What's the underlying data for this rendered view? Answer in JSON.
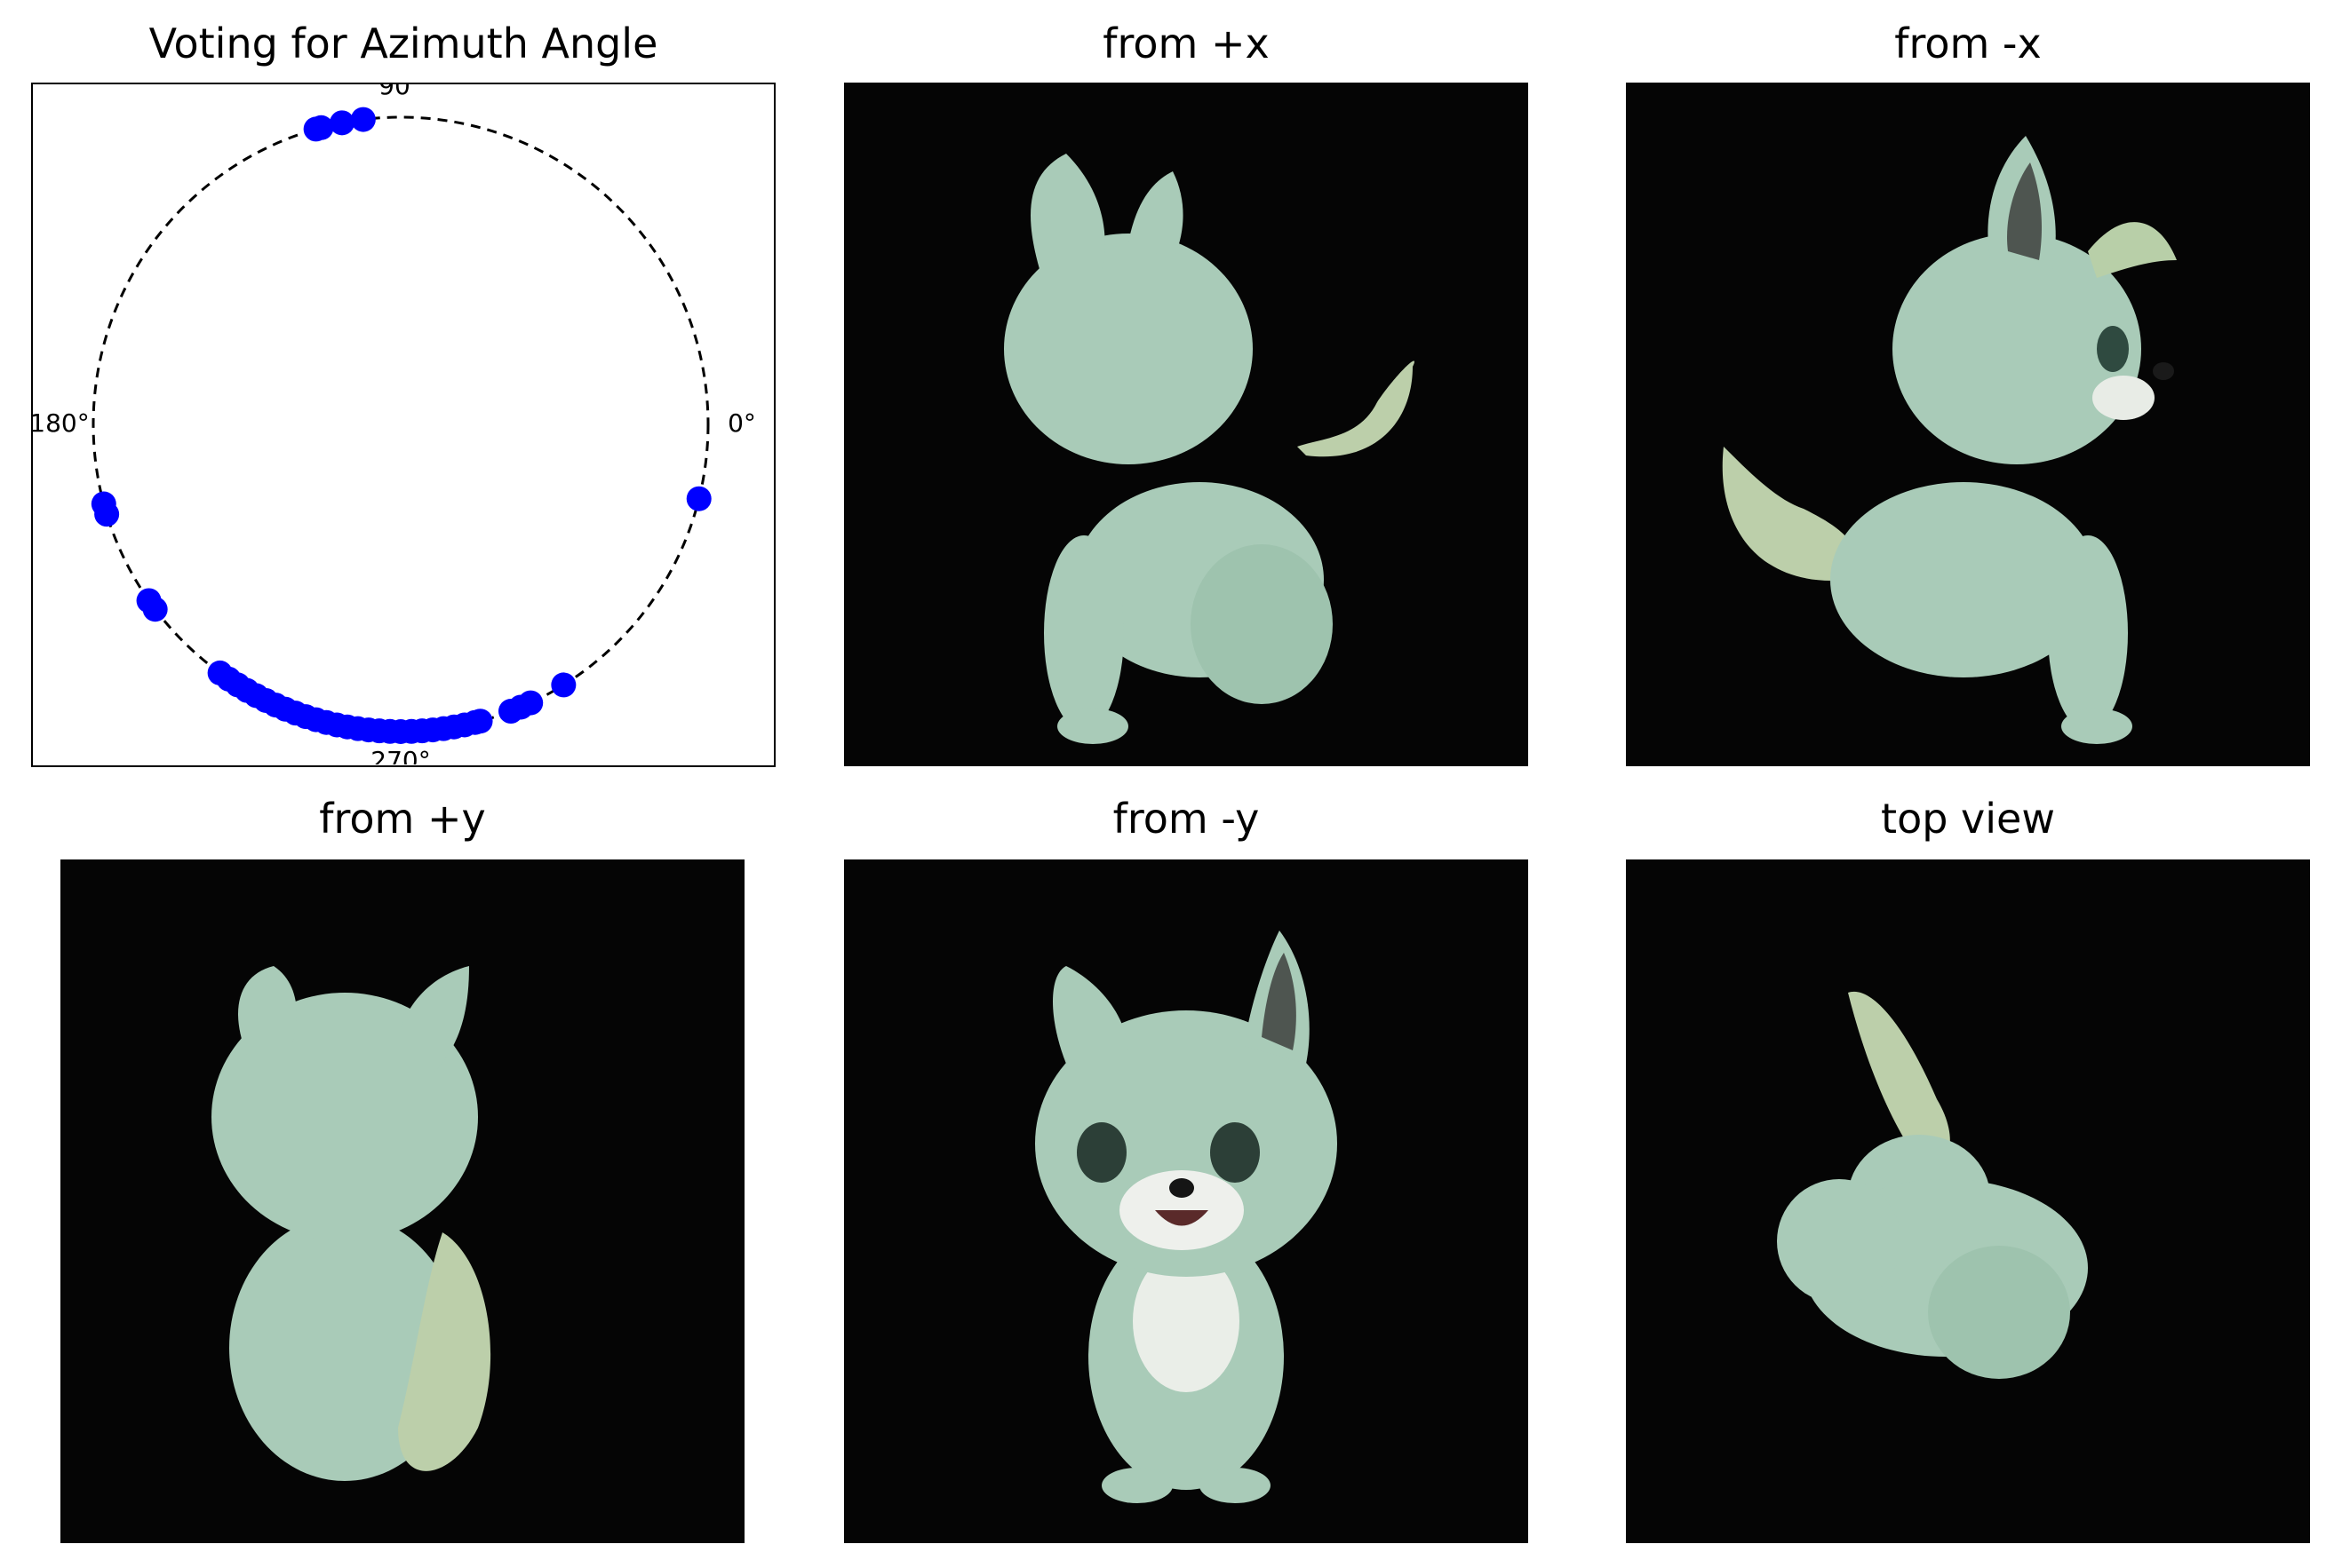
{
  "chart_data": {
    "type": "scatter",
    "title": "Voting for Azimuth Angle",
    "angle_labels": [
      {
        "deg": 0,
        "text": "0°"
      },
      {
        "deg": 90,
        "text": "90°"
      },
      {
        "deg": 180,
        "text": "180°"
      },
      {
        "deg": 270,
        "text": "270°"
      }
    ],
    "circle_style": "dashed",
    "point_color": "#0000ff",
    "votes_deg": [
      97,
      101,
      105,
      106,
      195,
      197,
      215,
      217,
      234,
      236,
      238,
      240,
      242,
      244,
      246,
      248,
      250,
      252,
      254,
      256,
      258,
      260,
      262,
      264,
      266,
      268,
      270,
      272,
      274,
      276,
      278,
      280,
      282,
      284,
      285,
      291,
      293,
      295,
      302,
      346
    ]
  },
  "views": [
    {
      "title": "from +x",
      "pose": "side-left"
    },
    {
      "title": "from -x",
      "pose": "side-right"
    },
    {
      "title": "from +y",
      "pose": "back"
    },
    {
      "title": "from -y",
      "pose": "front"
    },
    {
      "title": "top view",
      "pose": "top"
    }
  ]
}
